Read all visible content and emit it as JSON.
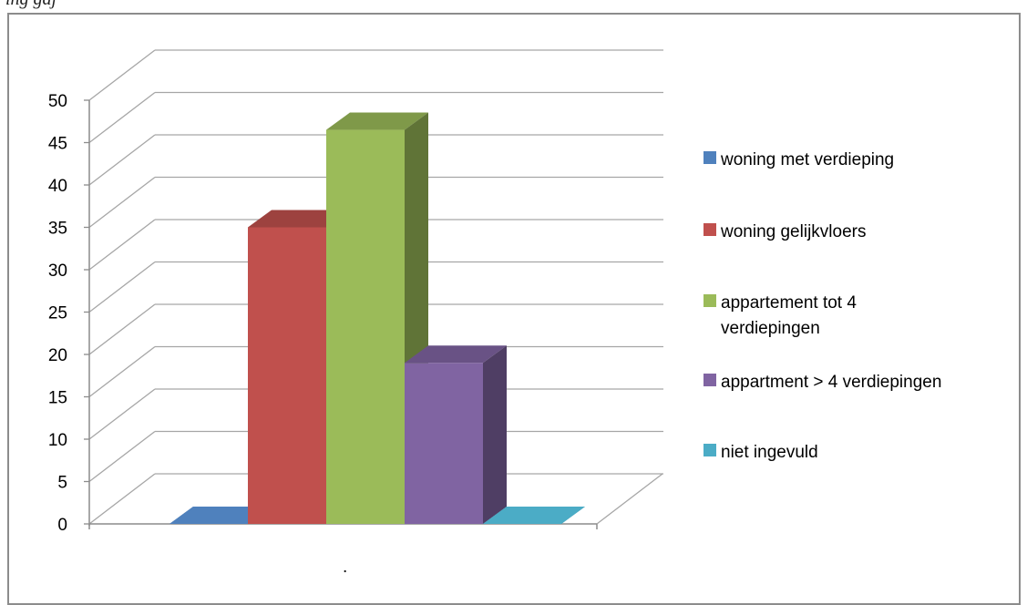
{
  "header": {
    "cropped_text": "ing gaj"
  },
  "chart_data": {
    "type": "bar",
    "style": "3d-column",
    "categories": [
      "woning met verdieping",
      "woning gelijkvloers",
      "appartement tot 4 verdiepingen",
      "appartment > 4 verdiepingen",
      "niet ingevuld"
    ],
    "values": [
      0,
      35,
      46.5,
      19,
      0
    ],
    "series_colors": [
      "#4F81BD",
      "#C0504D",
      "#9BBB59",
      "#8064A2",
      "#4BACC6"
    ],
    "ylim": [
      0,
      50
    ],
    "yticks": [
      0,
      5,
      10,
      15,
      20,
      25,
      30,
      35,
      40,
      45,
      50
    ],
    "xlabel": ".",
    "grid": true,
    "legend_position": "right",
    "legend": [
      {
        "lines": [
          "woning met verdieping"
        ],
        "color": "#4F81BD"
      },
      {
        "lines": [
          "woning gelijkvloers"
        ],
        "color": "#C0504D"
      },
      {
        "lines": [
          "appartement tot 4",
          "verdiepingen"
        ],
        "color": "#9BBB59"
      },
      {
        "lines": [
          "appartment > 4 verdiepingen"
        ],
        "color": "#8064A2"
      },
      {
        "lines": [
          "niet ingevuld"
        ],
        "color": "#4BACC6"
      }
    ]
  }
}
